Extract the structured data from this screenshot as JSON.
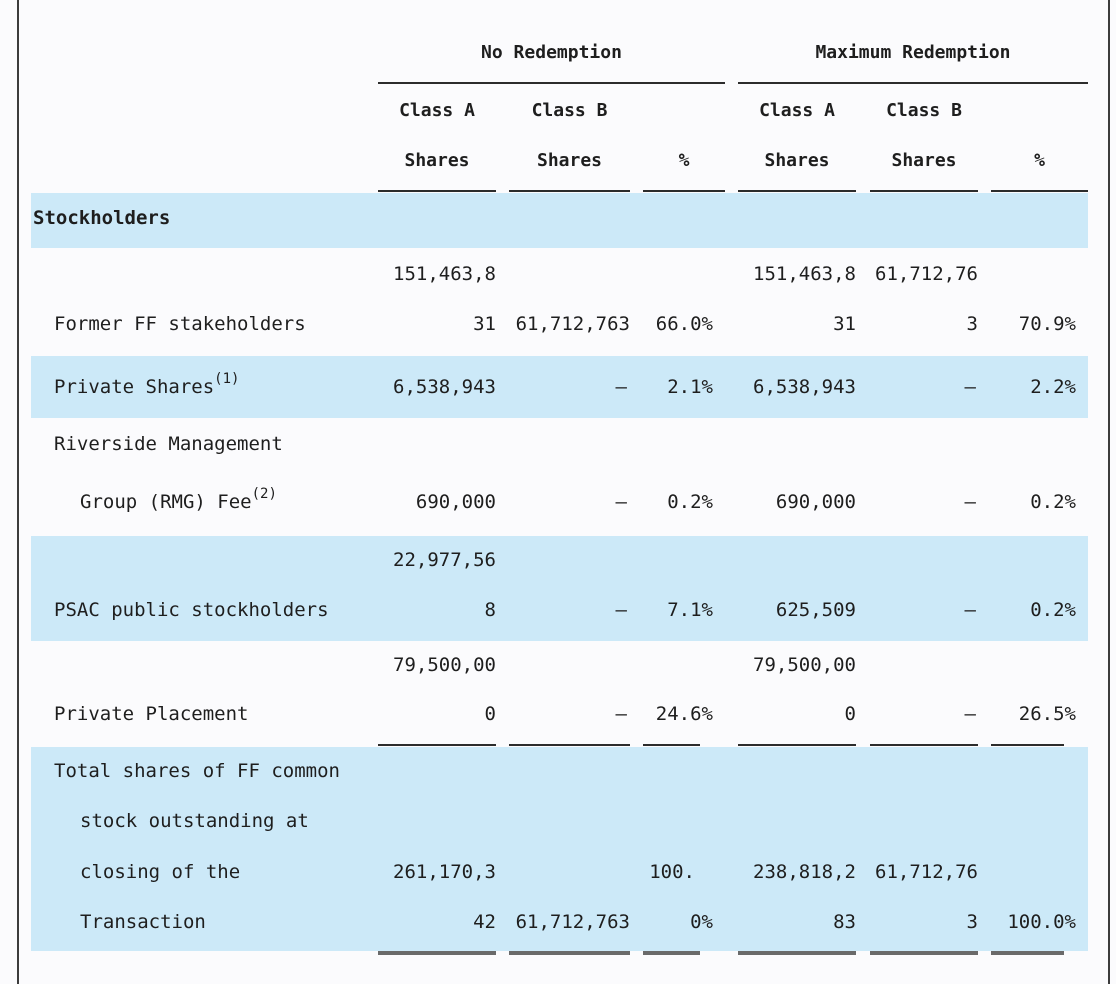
{
  "header": {
    "no_redemption": "No Redemption",
    "max_redemption": "Maximum Redemption",
    "col_class_a_1": "Class A",
    "col_class_a_2": "Shares",
    "col_class_b_1": "Class B",
    "col_class_b_2": "Shares",
    "col_pct": "%"
  },
  "section": {
    "title": "Stockholders"
  },
  "rows": {
    "former_ff": {
      "label": "Former FF stakeholders",
      "nr_a_1": "151,463,8",
      "nr_a_2": "31",
      "nr_b": "61,712,763",
      "nr_pct": "66.0%",
      "mr_a_1": "151,463,8",
      "mr_a_2": "31",
      "mr_b_1": "61,712,76",
      "mr_b_2": "3",
      "mr_pct": "70.9%"
    },
    "private_shares": {
      "label": "Private Shares",
      "footnote": "(1)",
      "nr_a": "6,538,943",
      "nr_b": "—",
      "nr_pct": "2.1%",
      "mr_a": "6,538,943",
      "mr_b": "—",
      "mr_pct": "2.2%"
    },
    "rmg": {
      "label_1": "Riverside Management",
      "label_2": "Group (RMG) Fee",
      "footnote": "(2)",
      "nr_a": "690,000",
      "nr_b": "—",
      "nr_pct": "0.2%",
      "mr_a": "690,000",
      "mr_b": "—",
      "mr_pct": "0.2%"
    },
    "psac": {
      "label": "PSAC public stockholders",
      "nr_a_1": "22,977,56",
      "nr_a_2": "8",
      "nr_b": "—",
      "nr_pct": "7.1%",
      "mr_a": "625,509",
      "mr_b": "—",
      "mr_pct": "0.2%"
    },
    "placement": {
      "label": "Private Placement",
      "nr_a_1": "79,500,00",
      "nr_a_2": "0",
      "nr_b": "—",
      "nr_pct": "24.6%",
      "mr_a_1": "79,500,00",
      "mr_a_2": "0",
      "mr_b": "—",
      "mr_pct": "26.5%"
    },
    "total": {
      "label_1": "Total shares of FF common",
      "label_2": "stock outstanding at",
      "label_3": "closing of the",
      "label_4": "Transaction",
      "nr_a_1": "261,170,3",
      "nr_a_2": "42",
      "nr_b": "61,712,763",
      "nr_pct_1": "100.",
      "nr_pct_2": "0%",
      "mr_a_1": "238,818,2",
      "mr_a_2": "83",
      "mr_b_1": "61,712,76",
      "mr_b_2": "3",
      "mr_pct": "100.0%"
    }
  }
}
